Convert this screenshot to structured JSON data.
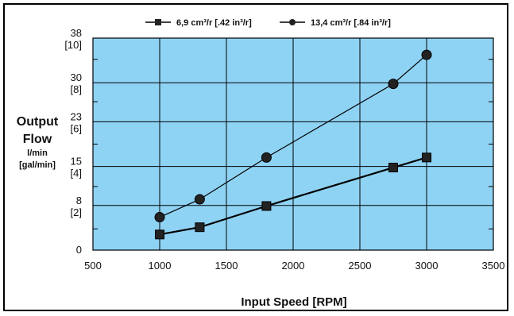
{
  "chart_data": {
    "type": "line",
    "xlabel": "Input Speed [RPM]",
    "ylabel_lines": [
      "Output",
      "Flow"
    ],
    "ylabel_units": [
      "l/min",
      "[gal/min]"
    ],
    "xlim": [
      500,
      3500
    ],
    "ylim": [
      0,
      38
    ],
    "x_ticks": [
      500,
      1000,
      1500,
      2000,
      2500,
      3000,
      3500
    ],
    "y_ticks": [
      {
        "value": 0,
        "label": "0",
        "sub": ""
      },
      {
        "value": 8,
        "label": "8",
        "sub": "[2]"
      },
      {
        "value": 15,
        "label": "15",
        "sub": "[4]"
      },
      {
        "value": 23,
        "label": "23",
        "sub": "[6]"
      },
      {
        "value": 30,
        "label": "30",
        "sub": "[8]"
      },
      {
        "value": 38,
        "label": "38",
        "sub": "[10]"
      }
    ],
    "minor_y_ticks": [
      3.8,
      11.4,
      19,
      26.6,
      34.2
    ],
    "grid": true,
    "background_color": "#8fd3f4",
    "legend_position": "top",
    "series": [
      {
        "name": "6,9 cm³/r [.42 in³/r]",
        "marker": "square",
        "line_width": 2.2,
        "x": [
          1000,
          1300,
          1800,
          2750,
          3000
        ],
        "y": [
          2.8,
          4.1,
          7.9,
          14.8,
          16.6
        ]
      },
      {
        "name": "13,4 cm³/r [.84 in³/r]",
        "marker": "circle",
        "line_width": 1.2,
        "x": [
          1000,
          1300,
          1800,
          2750,
          3000
        ],
        "y": [
          5.9,
          9.1,
          16.6,
          29.8,
          35.0
        ]
      }
    ]
  }
}
